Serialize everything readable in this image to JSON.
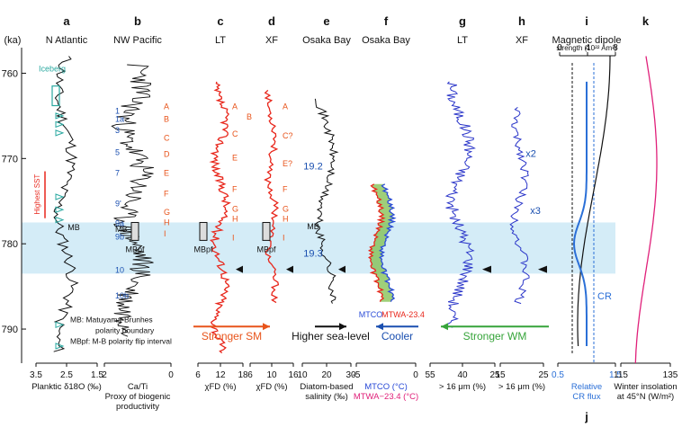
{
  "chart_data": {
    "type": "line",
    "y_axis": {
      "unit_label": "(ka)",
      "ticks": [
        760,
        770,
        780,
        790
      ],
      "range": [
        757,
        794
      ]
    },
    "shaded_interval": {
      "y_range": [
        777.5,
        783.5
      ],
      "color": "#d4ecf7"
    },
    "panels": [
      {
        "letter": "a",
        "title": "N Atlantic",
        "xlabel_lines": [
          "Planktic δ18O (‰)"
        ],
        "ticks": [
          "3.5",
          "2.5",
          "1.5"
        ],
        "color": "#111111",
        "annotations": [
          "Iceberg",
          "Highest SST",
          "MB"
        ]
      },
      {
        "letter": "b",
        "title": "NW Pacific",
        "xlabel_lines": [
          "Ca/Ti",
          "Proxy of biogenic",
          "productivity"
        ],
        "ticks": [
          "2",
          "0"
        ],
        "color": "#111111",
        "annotations": [
          "MB",
          "MBpf"
        ],
        "numbered_markers": [
          "1",
          "1a",
          "3",
          "5",
          "7",
          "9'",
          "9a",
          "9b",
          "10",
          "10b"
        ],
        "letter_markers": [
          "A",
          "B",
          "C",
          "D",
          "E",
          "F",
          "G",
          "H",
          "I"
        ]
      },
      {
        "letter": "c",
        "title": "LT",
        "xlabel_lines": [
          "χFD (%)"
        ],
        "ticks": [
          "6",
          "12",
          "18"
        ],
        "color": "#e8261b",
        "letter_markers": [
          "A",
          "B",
          "C",
          "E",
          "F",
          "G",
          "H",
          "I"
        ]
      },
      {
        "letter": "d",
        "title": "XF",
        "xlabel_lines": [
          "χFD (%)"
        ],
        "ticks": [
          "6",
          "10",
          "16"
        ],
        "color": "#e8261b",
        "letter_markers": [
          "A",
          "C?",
          "E?",
          "F",
          "G",
          "H",
          "I"
        ]
      },
      {
        "letter": "e",
        "title": "Osaka Bay",
        "xlabel_lines": [
          "Diatom-based",
          "salinity  (‰)"
        ],
        "ticks": [
          "10",
          "20",
          "30"
        ],
        "color": "#111111",
        "annotations": [
          "19.2",
          "19.3",
          "MB"
        ]
      },
      {
        "letter": "f",
        "title": "Osaka Bay",
        "xlabel_lines": [
          "MTCO (°C)",
          "MTWA−23.4 (°C)"
        ],
        "ticks": [
          "-5",
          "0"
        ],
        "colors": [
          "#2a4bd7",
          "#e8261b"
        ],
        "annotations": [
          "MTCO",
          "MTWA-23.4"
        ]
      },
      {
        "letter": "g",
        "title": "LT",
        "xlabel_lines": [
          "> 16 μm (%)"
        ],
        "ticks": [
          "55",
          "40",
          "25"
        ],
        "color": "#2a35c9",
        "annotations": []
      },
      {
        "letter": "h",
        "title": "XF",
        "xlabel_lines": [
          "> 16 μm (%)"
        ],
        "ticks": [
          "15",
          "25"
        ],
        "color": "#2a35c9",
        "annotations": [
          "x2",
          "x3"
        ]
      },
      {
        "letter": "i",
        "title": "Magnetic dipole",
        "title_line2": "strength (10²² Am²)",
        "ticks_top": [
          "0",
          "4",
          "8"
        ],
        "ticks_bottom": [
          "0.5",
          "1.5"
        ],
        "xlabel_lines": [
          "Relative",
          "CR flux"
        ],
        "bottom_letter": "j",
        "annotations": [
          "CR"
        ]
      },
      {
        "letter": "k",
        "title": "",
        "xlabel_lines": [
          "Winter insolation",
          "at 45°N (W/m²)"
        ],
        "ticks": [
          "115",
          "135"
        ],
        "color": "#e0207a"
      }
    ],
    "bottom_labels": [
      {
        "text": "Stronger SM",
        "color": "#e8541b"
      },
      {
        "text": "Higher sea-level",
        "color": "#111111"
      },
      {
        "text": "Cooler",
        "color": "#1a4fb0"
      },
      {
        "text": "Stronger WM",
        "color": "#36a43a"
      }
    ],
    "legend_note": [
      "MB: Matuyama-Brunhes",
      "polarity boundary",
      "MBpf: M-B polarity flip interval"
    ]
  }
}
